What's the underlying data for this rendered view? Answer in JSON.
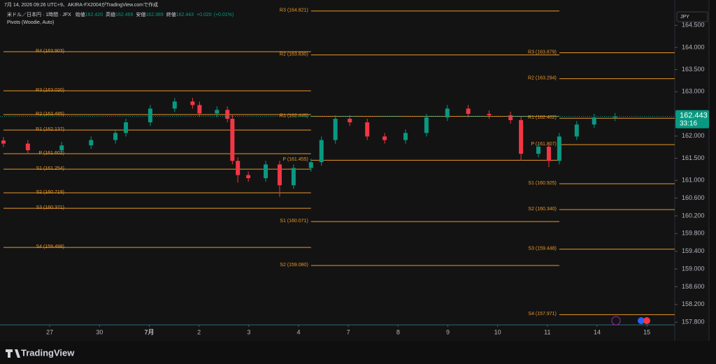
{
  "header": {
    "created": "7月 14, 2026 09:26 UTC+9、AKIRA-FX2004がTradingView.comで作成",
    "brand": "TradingView"
  },
  "chart_data": {
    "type": "candlestick",
    "title": "米ドル／日本円 · 1時間 · JFX",
    "indicator": "Pivots (Woodie, Auto)",
    "ohlc_legend": [
      {
        "name": "始値",
        "value": {
          "value": 162.42,
          "label": "162.420"
        }
      },
      {
        "name": "高値",
        "value": {
          "value": 162.469,
          "label": "162.469"
        }
      },
      {
        "name": "安値",
        "value": {
          "value": 162.389,
          "label": "162.389"
        }
      },
      {
        "name": "終値",
        "value": {
          "value": 162.443,
          "label": "162.443"
        }
      }
    ],
    "change": {
      "value": 0.02,
      "label": "+0.020"
    },
    "change_pct": {
      "value": 0.01,
      "label": "(+0.01%)"
    },
    "currency": "JPY",
    "last_price": {
      "value": 162.443,
      "label": "162.443"
    },
    "countdown": "33:16",
    "up_color": "#089981",
    "down_color": "#f23645",
    "pivot_color": "#e8972a",
    "x": [
      -0.93,
      -0.44,
      0.24,
      0.83,
      1.32,
      1.53,
      2.02,
      2.51,
      2.87,
      3.01,
      3.36,
      3.57,
      3.67,
      3.78,
      3.99,
      4.34,
      4.62,
      4.9,
      5.25,
      5.46,
      5.74,
      6.03,
      6.38,
      6.73,
      7.15,
      7.57,
      7.99,
      8.41,
      8.83,
      9.26,
      9.47,
      9.82,
      10.03,
      10.24,
      10.59,
      10.94,
      11.36
    ],
    "open": [
      161.9,
      161.83,
      161.68,
      161.79,
      161.91,
      162.07,
      162.31,
      162.62,
      162.78,
      162.7,
      162.51,
      162.59,
      162.39,
      161.44,
      161.12,
      161.05,
      161.36,
      160.89,
      161.28,
      161.41,
      161.91,
      162.39,
      162.31,
      161.99,
      161.91,
      162.07,
      162.42,
      162.62,
      162.5,
      162.47,
      162.36,
      161.6,
      161.76,
      161.44,
      161.99,
      162.26,
      162.42
    ],
    "high": [
      161.98,
      161.91,
      161.87,
      161.99,
      162.15,
      162.39,
      162.7,
      162.86,
      162.86,
      162.78,
      162.67,
      162.67,
      162.47,
      161.52,
      161.2,
      161.44,
      161.44,
      161.36,
      161.49,
      161.99,
      162.47,
      162.47,
      162.39,
      162.07,
      162.15,
      162.5,
      162.7,
      162.7,
      162.58,
      162.55,
      162.44,
      161.84,
      161.84,
      162.07,
      162.34,
      162.5,
      162.52
    ],
    "low": [
      161.75,
      161.6,
      161.6,
      161.71,
      161.83,
      161.99,
      162.23,
      162.54,
      162.62,
      162.43,
      162.43,
      162.31,
      161.36,
      160.95,
      160.97,
      160.97,
      160.63,
      160.81,
      161.2,
      161.33,
      161.83,
      162.23,
      161.91,
      161.83,
      161.83,
      161.99,
      162.34,
      162.42,
      162.39,
      162.28,
      161.45,
      161.52,
      161.3,
      161.36,
      161.91,
      162.18,
      162.34
    ],
    "close": [
      161.83,
      161.68,
      161.79,
      161.91,
      162.07,
      162.31,
      162.62,
      162.78,
      162.7,
      162.51,
      162.59,
      162.39,
      161.44,
      161.12,
      161.05,
      161.36,
      160.89,
      161.28,
      161.41,
      161.91,
      162.39,
      162.31,
      161.99,
      161.91,
      162.07,
      162.42,
      162.62,
      162.5,
      162.47,
      162.36,
      161.6,
      161.76,
      161.44,
      161.99,
      162.26,
      162.42,
      162.44
    ],
    "pivots": [
      {
        "start": -0.93,
        "end": 5.25,
        "levels": [
          {
            "value": 163.903,
            "label": "R4 (163.903)"
          },
          {
            "value": 163.02,
            "label": "R3 (163.020)"
          },
          {
            "value": 162.485,
            "label": "R2 (162.485)"
          },
          {
            "value": 162.137,
            "label": "R1 (162.137)"
          },
          {
            "value": 161.602,
            "label": "P (161.602)"
          },
          {
            "value": 161.254,
            "label": "S1 (161.254)"
          },
          {
            "value": 160.719,
            "label": "S2 (160.719)"
          },
          {
            "value": 160.371,
            "label": "S3 (160.371)"
          },
          {
            "value": 159.488,
            "label": "S4 (159.488)"
          }
        ]
      },
      {
        "start": 5.25,
        "end": 10.24,
        "levels": [
          {
            "value": 164.821,
            "label": "R3 (164.821)"
          },
          {
            "value": 163.83,
            "label": "R2 (163.830)"
          },
          {
            "value": 162.446,
            "label": "R1 (162.446)"
          },
          {
            "value": 161.455,
            "label": "P (161.455)"
          },
          {
            "value": 160.071,
            "label": "S1 (160.071)"
          },
          {
            "value": 159.08,
            "label": "S2 (159.080)"
          }
        ]
      },
      {
        "start": 10.24,
        "end": 12.56,
        "levels": [
          {
            "value": 163.879,
            "label": "R3 (163.879)"
          },
          {
            "value": 163.294,
            "label": "R2 (163.294)"
          },
          {
            "value": 162.402,
            "label": "R1 (162.402)"
          },
          {
            "value": 161.807,
            "label": "P (161.807)"
          },
          {
            "value": 160.925,
            "label": "S1 (160.925)"
          },
          {
            "value": 160.34,
            "label": "S2 (160.340)"
          },
          {
            "value": 159.448,
            "label": "S3 (159.448)"
          },
          {
            "value": 157.971,
            "label": "S4 (157.971)"
          }
        ]
      }
    ],
    "xlim": [
      -1,
      12.56
    ],
    "xticks": [
      {
        "value": 0,
        "label": "27"
      },
      {
        "value": 1,
        "label": "30"
      },
      {
        "value": 2,
        "label": "7月"
      },
      {
        "value": 3,
        "label": "2"
      },
      {
        "value": 4,
        "label": "3"
      },
      {
        "value": 5,
        "label": "4"
      },
      {
        "value": 6,
        "label": "7"
      },
      {
        "value": 7,
        "label": "8"
      },
      {
        "value": 8,
        "label": "9"
      },
      {
        "value": 9,
        "label": "10"
      },
      {
        "value": 10,
        "label": "11"
      },
      {
        "value": 11,
        "label": "14"
      },
      {
        "value": 12,
        "label": "15"
      }
    ],
    "ylim": [
      157.74,
      165.07
    ],
    "yticks": [
      {
        "value": 164.5,
        "label": "164.500"
      },
      {
        "value": 164,
        "label": "164.000"
      },
      {
        "value": 163.5,
        "label": "163.500"
      },
      {
        "value": 163,
        "label": "163.000"
      },
      {
        "value": 162.5,
        "label": "162.500"
      },
      {
        "value": 162,
        "label": "162.000"
      },
      {
        "value": 161.5,
        "label": "161.500"
      },
      {
        "value": 161,
        "label": "161.000"
      },
      {
        "value": 160.6,
        "label": "160.600"
      },
      {
        "value": 160.2,
        "label": "160.200"
      },
      {
        "value": 159.8,
        "label": "159.800"
      },
      {
        "value": 159.4,
        "label": "159.400"
      },
      {
        "value": 159,
        "label": "159.000"
      },
      {
        "value": 158.6,
        "label": "158.600"
      },
      {
        "value": 158.2,
        "label": "158.200"
      },
      {
        "value": 157.8,
        "label": "157.800"
      }
    ]
  }
}
